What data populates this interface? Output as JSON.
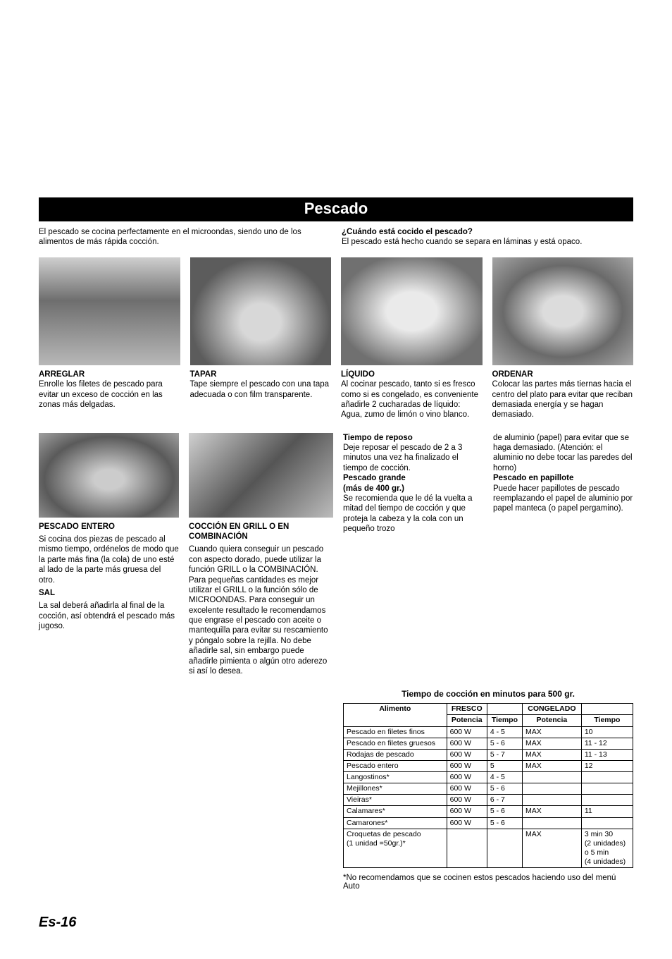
{
  "page_title": "Pescado",
  "intro_left": "El pescado se cocina perfectamente en el microondas, siendo uno de los alimentos de más rápida cocción.",
  "intro_right_q": "¿Cuándo está cocido el pescado?",
  "intro_right_a": "El pescado está hecho cuando se separa en láminas y está opaco.",
  "tips": [
    {
      "title": "ARREGLAR",
      "body": "Enrolle los filetes de pescado para evitar un exceso de cocción en las zonas más delgadas."
    },
    {
      "title": "TAPAR",
      "body": "Tape siempre el pescado con una tapa adecuada o con film transparente."
    },
    {
      "title": "LÍQUIDO",
      "body": "Al cocinar pescado, tanto si es fresco como si es congelado, es conveniente añadirle 2 cucharadas de líquido: Agua, zumo de limón o vino blanco."
    },
    {
      "title": "ORDENAR",
      "body": "Colocar las partes más tiernas hacia el centro del plato para evitar que reciban demasiada energía y se hagan demasiado."
    }
  ],
  "col1_h1": "PESCADO ENTERO",
  "col1_p1": "Si cocina dos piezas de pescado al mismo tiempo, ordénelos de modo que la parte más fina (la cola) de uno esté al lado de la parte más gruesa del otro.",
  "col1_h2": "SAL",
  "col1_p2": "La sal deberá añadirla al final de la cocción, así obtendrá el pescado más jugoso.",
  "col2_h1": "COCCIÓN EN GRILL O EN COMBINACIÓN",
  "col2_p1": "Cuando quiera conseguir un pescado con aspecto dorado, puede utilizar la función GRILL o la COMBINACIÓN. Para pequeñas cantidades es mejor utilizar el GRILL o la función sólo de MICROONDAS. Para conseguir un excelente resultado le recomendamos que engrase el pescado con aceite o mantequilla para evitar su rescamiento y póngalo sobre la rejilla. No debe añadirle sal, sin embargo puede añadirle pimienta o algún otro aderezo si así lo desea.",
  "col3_h1": "Tiempo de reposo",
  "col3_p1": "Deje reposar el pescado de 2 a 3 minutos una vez ha finalizado el tiempo de cocción.",
  "col3_h2": "Pescado grande",
  "col3_h2b": "(más de 400 gr.)",
  "col3_p2": "Se recomienda que le dé la vuelta a mitad del tiempo de cocción y que proteja la cabeza y la cola con un pequeño trozo",
  "col4_p1": "de aluminio (papel) para evitar que se haga demasiado. (Atención: el aluminio no debe tocar las paredes del horno)",
  "col4_h1": "Pescado en papillote",
  "col4_p2": "Puede hacer papillotes de pescado reemplazando el papel de aluminio por papel manteca (o papel pergamino).",
  "table_title": "Tiempo de cocción en minutos para 500 gr.",
  "table": {
    "headers": {
      "c1": "Alimento",
      "c2": "FRESCO",
      "c3": "",
      "c4": "CONGELADO",
      "c5": ""
    },
    "sub": {
      "c2": "Potencia",
      "c3": "Tiempo",
      "c4": "Potencia",
      "c5": "Tiempo"
    },
    "rows": [
      {
        "a": "Pescado en filetes finos",
        "p1": "600 W",
        "t1": "4 - 5",
        "p2": "MAX",
        "t2": "10"
      },
      {
        "a": "Pescado en filetes gruesos",
        "p1": "600 W",
        "t1": "5 - 6",
        "p2": "MAX",
        "t2": "11 - 12"
      },
      {
        "a": "Rodajas de pescado",
        "p1": "600 W",
        "t1": "5 - 7",
        "p2": "MAX",
        "t2": "11 - 13"
      },
      {
        "a": "Pescado entero",
        "p1": "600 W",
        "t1": "5",
        "p2": "MAX",
        "t2": "12"
      },
      {
        "a": "Langostinos*",
        "p1": "600 W",
        "t1": "4 - 5",
        "p2": "",
        "t2": ""
      },
      {
        "a": "Mejillones*",
        "p1": "600 W",
        "t1": "5 - 6",
        "p2": "",
        "t2": ""
      },
      {
        "a": "Vieiras*",
        "p1": "600 W",
        "t1": "6 - 7",
        "p2": "",
        "t2": ""
      },
      {
        "a": "Calamares*",
        "p1": "600 W",
        "t1": "5 - 6",
        "p2": "MAX",
        "t2": "11"
      },
      {
        "a": "Camarones*",
        "p1": "600 W",
        "t1": "5 - 6",
        "p2": "",
        "t2": ""
      },
      {
        "a": "Croquetas de pescado\n(1 unidad =50gr.)*",
        "p1": "",
        "t1": "",
        "p2": "MAX",
        "t2": "3 min 30\n(2 unidades)\no 5 min\n(4 unidades)"
      }
    ]
  },
  "footnote": "*No recomendamos que se cocinen estos pescados haciendo uso del menú Auto",
  "page_num": "Es-16",
  "colors": {
    "text": "#000000",
    "bg": "#ffffff",
    "bar_bg": "#000000",
    "bar_fg": "#ffffff",
    "table_border": "#000000"
  }
}
